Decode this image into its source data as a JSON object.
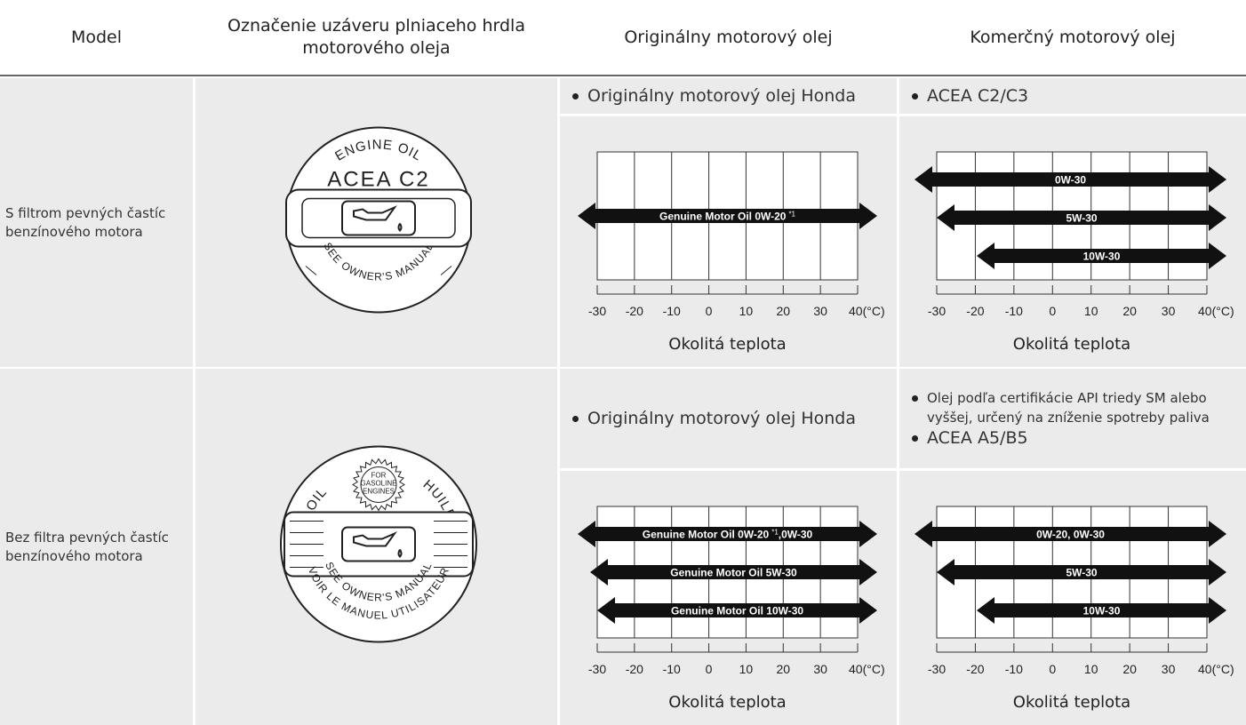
{
  "header": {
    "model": "Model",
    "cap": "Označenie uzáveru plniaceho hrdla motorového oleja",
    "genuine": "Originálny motorový olej",
    "commercial": "Komerčný motorový olej"
  },
  "rows": [
    {
      "model": "S filtrom pevných častíc benzínového motora",
      "cap": {
        "top": "ENGINE OIL",
        "grade": "ACEA C2",
        "bottom": "SEE OWNER'S MANUAL"
      },
      "genuine": {
        "bullets": [
          "Originálny motorový olej Honda"
        ],
        "chart": {
          "arrows": [
            {
              "text": "Genuine Motor Oil 0W-20",
              "note": "*1"
            }
          ],
          "ticks": [
            "-30",
            "-20",
            "-10",
            "0",
            "10",
            "20",
            "30",
            "40(°C)"
          ],
          "xlabel": "Okolitá teplota"
        }
      },
      "commercial": {
        "bullets": [
          "ACEA C2/C3"
        ],
        "chart": {
          "arrows": [
            {
              "text": "0W-30"
            },
            {
              "text": "5W-30"
            },
            {
              "text": "10W-30"
            }
          ],
          "ticks": [
            "-30",
            "-20",
            "-10",
            "0",
            "10",
            "20",
            "30",
            "40(°C)"
          ],
          "xlabel": "Okolitá teplota"
        }
      }
    },
    {
      "model": "Bez filtra pevných častíc benzínového motora",
      "cap": {
        "left": "OIL",
        "right": "HUILE",
        "center": [
          "FOR",
          "GASOLINE",
          "ENGINES"
        ],
        "bottom": "SEE OWNER'S MANUAL",
        "bottom2": "VOIR LE MANUEL UTILISATEUR"
      },
      "genuine": {
        "bullets": [
          "Originálny motorový olej Honda"
        ],
        "chart": {
          "arrows": [
            {
              "text": "Genuine Motor Oil 0W-20",
              "note": "*1",
              "rest": ",0W-30"
            },
            {
              "text": "Genuine Motor Oil 5W-30"
            },
            {
              "text": "Genuine Motor Oil 10W-30"
            }
          ],
          "ticks": [
            "-30",
            "-20",
            "-10",
            "0",
            "10",
            "20",
            "30",
            "40(°C)"
          ],
          "xlabel": "Okolitá teplota"
        }
      },
      "commercial": {
        "bullets": [
          "Olej podľa certifikácie API triedy SM alebo vyššej, určený na zníženie spotreby paliva",
          "ACEA A5/B5"
        ],
        "chart": {
          "arrows": [
            {
              "text": "0W-20, 0W-30"
            },
            {
              "text": "5W-30"
            },
            {
              "text": "10W-30"
            }
          ],
          "ticks": [
            "-30",
            "-20",
            "-10",
            "0",
            "10",
            "20",
            "30",
            "40(°C)"
          ],
          "xlabel": "Okolitá teplota"
        }
      }
    }
  ]
}
